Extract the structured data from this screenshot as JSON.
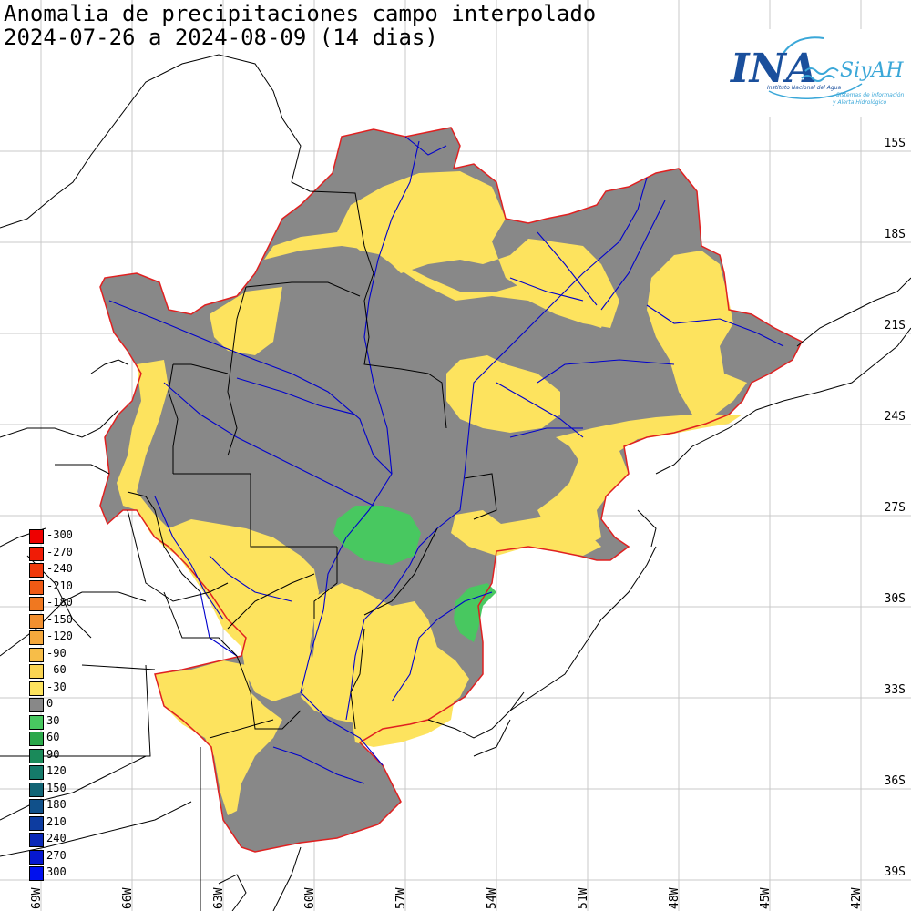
{
  "header": {
    "title_line1": "Anomalia de precipitaciones campo interpolado",
    "title_line2": "2024-07-26 a 2024-08-09 (14 dias)"
  },
  "logo": {
    "main": "INA",
    "sub": "SiyAH",
    "tag1": "Instituto Nacional del Agua",
    "tag2": "Sistemas de información",
    "tag3": "y Alerta Hidrológico",
    "colors": {
      "ina": "#1a4f9c",
      "siyah": "#3aa7d8"
    }
  },
  "latitude_labels": [
    "15S",
    "18S",
    "21S",
    "24S",
    "27S",
    "30S",
    "33S",
    "36S",
    "39S"
  ],
  "longitude_labels": [
    "69W",
    "66W",
    "63W",
    "60W",
    "57W",
    "54W",
    "51W",
    "48W",
    "45W",
    "42W"
  ],
  "legend": {
    "items": [
      {
        "label": "-300",
        "color": "#ee0000"
      },
      {
        "label": "-270",
        "color": "#f01c06"
      },
      {
        "label": "-240",
        "color": "#f03a0c"
      },
      {
        "label": "-210",
        "color": "#f05a14"
      },
      {
        "label": "-180",
        "color": "#f07820"
      },
      {
        "label": "-150",
        "color": "#f29030"
      },
      {
        "label": "-120",
        "color": "#f5a83c"
      },
      {
        "label": "-90",
        "color": "#f7bd48"
      },
      {
        "label": "-60",
        "color": "#fad452"
      },
      {
        "label": "-30",
        "color": "#fde35e"
      },
      {
        "label": "0",
        "color": "#888888"
      },
      {
        "label": "30",
        "color": "#48c860"
      },
      {
        "label": "60",
        "color": "#2aa84a"
      },
      {
        "label": "90",
        "color": "#1a8a5a"
      },
      {
        "label": "120",
        "color": "#157a6a"
      },
      {
        "label": "150",
        "color": "#126575"
      },
      {
        "label": "180",
        "color": "#10508a"
      },
      {
        "label": "210",
        "color": "#0d3ca0"
      },
      {
        "label": "240",
        "color": "#0a28b8"
      },
      {
        "label": "270",
        "color": "#0618d0"
      },
      {
        "label": "300",
        "color": "#0010ee"
      }
    ]
  },
  "map_colors": {
    "dry": "#fde35e",
    "normal": "#888888",
    "wet": "#48c860",
    "basin_outline": "#e02020",
    "rivers": "#0000cc",
    "borders": "#000000",
    "grid": "#c8c8c8"
  }
}
